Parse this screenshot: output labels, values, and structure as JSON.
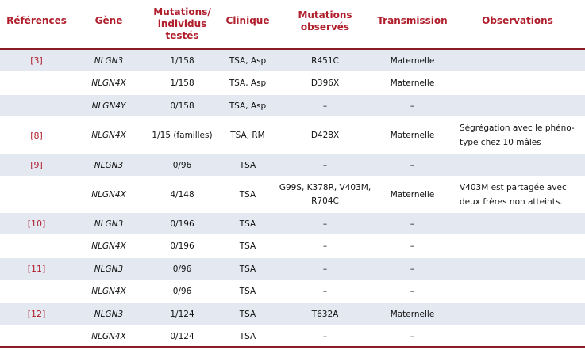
{
  "table": {
    "headers": {
      "references": "Références",
      "gene": "Gène",
      "mutations_individus_l1": "Mutations/",
      "mutations_individus_l2": "individus",
      "mutations_individus_l3": "testés",
      "clinique": "Clinique",
      "mutations_observes_l1": "Mutations",
      "mutations_observes_l2": "observés",
      "transmission": "Transmission",
      "observations": "Observations"
    },
    "rows": [
      {
        "ref": "[3]",
        "gene": "NLGN3",
        "mut": "1/158",
        "clin": "TSA, Asp",
        "obsmut": "R451C",
        "trans": "Maternelle",
        "obs": ""
      },
      {
        "ref": "",
        "gene": "NLGN4X",
        "mut": "1/158",
        "clin": "TSA, Asp",
        "obsmut": "D396X",
        "trans": "Maternelle",
        "obs": ""
      },
      {
        "ref": "",
        "gene": "NLGN4Y",
        "mut": "0/158",
        "clin": "TSA, Asp",
        "obsmut": "–",
        "trans": "–",
        "obs": ""
      },
      {
        "ref": "[8]",
        "gene": "NLGN4X",
        "mut": "1/15 (familles)",
        "clin": "TSA, RM",
        "obsmut": "D428X",
        "trans": "Maternelle",
        "obs": "Ségrégation avec le phéno-type chez 10 mâles"
      },
      {
        "ref": "[9]",
        "gene": "NLGN3",
        "mut": "0/96",
        "clin": "TSA",
        "obsmut": "–",
        "trans": "–",
        "obs": ""
      },
      {
        "ref": "",
        "gene": "NLGN4X",
        "mut": "4/148",
        "clin": "TSA",
        "obsmut": "G99S, K378R, V403M, R704C",
        "trans": "Maternelle",
        "obs": "V403M est partagée avec deux frères non atteints."
      },
      {
        "ref": "[10]",
        "gene": "NLGN3",
        "mut": "0/196",
        "clin": "TSA",
        "obsmut": "–",
        "trans": "–",
        "obs": ""
      },
      {
        "ref": "",
        "gene": "NLGN4X",
        "mut": "0/196",
        "clin": "TSA",
        "obsmut": "–",
        "trans": "–",
        "obs": ""
      },
      {
        "ref": "[11]",
        "gene": "NLGN3",
        "mut": "0/96",
        "clin": "TSA",
        "obsmut": "–",
        "trans": "–",
        "obs": ""
      },
      {
        "ref": "",
        "gene": "NLGN4X",
        "mut": "0/96",
        "clin": "TSA",
        "obsmut": "–",
        "trans": "–",
        "obs": ""
      },
      {
        "ref": "[12]",
        "gene": "NLGN3",
        "mut": "1/124",
        "clin": "TSA",
        "obsmut": "T632A",
        "trans": "Maternelle",
        "obs": ""
      },
      {
        "ref": "",
        "gene": "NLGN4X",
        "mut": "0/124",
        "clin": "TSA",
        "obsmut": "–",
        "trans": "–",
        "obs": ""
      }
    ]
  }
}
